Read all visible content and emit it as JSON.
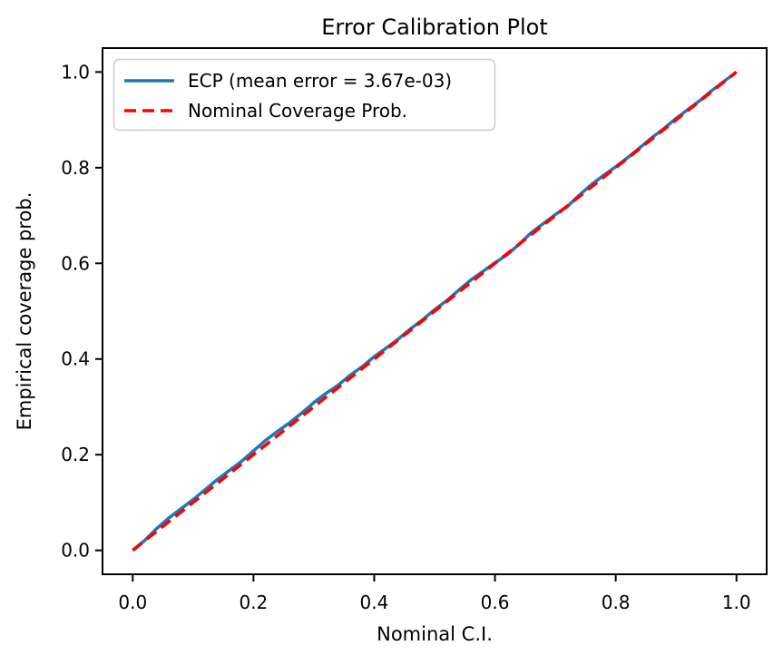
{
  "chart_data": {
    "type": "line",
    "title": "Error Calibration Plot",
    "xlabel": "Nominal C.I.",
    "ylabel": "Empirical coverage prob.",
    "xlim": [
      0,
      1
    ],
    "ylim": [
      0,
      1
    ],
    "margin": 0.05,
    "grid": false,
    "legend_position": "upper left",
    "x_ticks": [
      0.0,
      0.2,
      0.4,
      0.6,
      0.8,
      1.0
    ],
    "y_ticks": [
      0.0,
      0.2,
      0.4,
      0.6,
      0.8,
      1.0
    ],
    "series": [
      {
        "name": "ECP (mean error = 3.67e-03)",
        "color": "#1f77b4",
        "style": "solid",
        "width": 3.5,
        "x": [
          0.0,
          0.02,
          0.04,
          0.06,
          0.08,
          0.1,
          0.12,
          0.14,
          0.16,
          0.18,
          0.2,
          0.22,
          0.24,
          0.26,
          0.28,
          0.3,
          0.32,
          0.34,
          0.36,
          0.38,
          0.4,
          0.42,
          0.44,
          0.46,
          0.48,
          0.5,
          0.52,
          0.54,
          0.56,
          0.58,
          0.6,
          0.62,
          0.64,
          0.66,
          0.68,
          0.7,
          0.72,
          0.74,
          0.76,
          0.78,
          0.8,
          0.82,
          0.84,
          0.86,
          0.88,
          0.9,
          0.92,
          0.94,
          0.96,
          0.98,
          1.0
        ],
        "y": [
          0.0,
          0.021,
          0.046,
          0.068,
          0.087,
          0.106,
          0.127,
          0.148,
          0.167,
          0.186,
          0.208,
          0.23,
          0.249,
          0.267,
          0.287,
          0.309,
          0.328,
          0.345,
          0.366,
          0.384,
          0.405,
          0.423,
          0.442,
          0.463,
          0.482,
          0.503,
          0.522,
          0.544,
          0.565,
          0.583,
          0.601,
          0.618,
          0.64,
          0.664,
          0.683,
          0.702,
          0.719,
          0.743,
          0.765,
          0.784,
          0.802,
          0.821,
          0.842,
          0.863,
          0.882,
          0.903,
          0.922,
          0.941,
          0.962,
          0.981,
          1.0
        ]
      },
      {
        "name": "Nominal Coverage Prob.",
        "color": "#ff0000",
        "style": "dashed",
        "width": 3.5,
        "x": [
          0,
          1
        ],
        "y": [
          0,
          1
        ]
      }
    ]
  }
}
